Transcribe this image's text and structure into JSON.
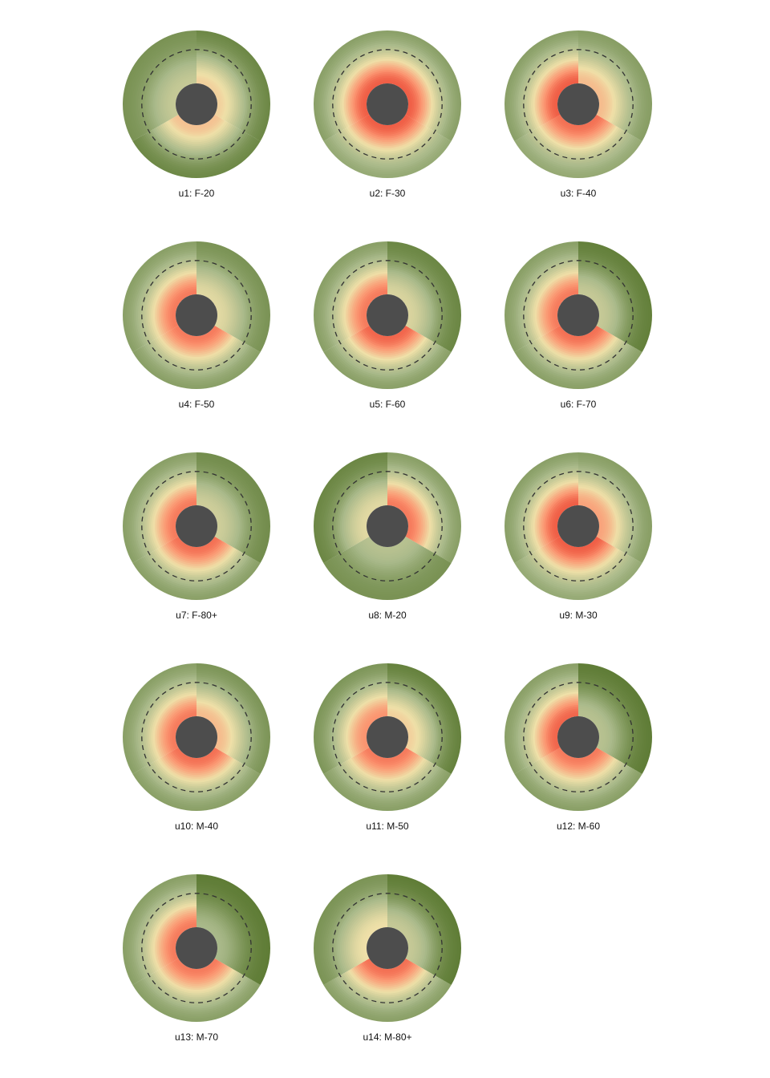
{
  "chart_data": {
    "type": "polar",
    "angular_sectors": 3,
    "sector_order": "clockwise from 12 o'clock",
    "radial_scale": "Gaussian colour gradient from inner hub to outer rim; dashed circle marks reference radius",
    "dashed_reference_fraction": 0.64,
    "color_scale": {
      "low": "#4a6b1e",
      "mid_low": "#a9b98a",
      "mid": "#efe0a8",
      "mid_high": "#fb9470",
      "high": "#e83a2a"
    },
    "hub_color": "#4d4d4d",
    "panels": [
      {
        "label": "u1: F-20",
        "sectors": [
          [
            0.08,
            0.55
          ],
          [
            0.08,
            0.6
          ],
          [
            0.12,
            0.35
          ]
        ]
      },
      {
        "label": "u2: F-30",
        "sectors": [
          [
            0.15,
            0.9
          ],
          [
            0.18,
            0.9
          ],
          [
            0.15,
            0.9
          ]
        ]
      },
      {
        "label": "u3: F-40",
        "sectors": [
          [
            0.15,
            0.62
          ],
          [
            0.18,
            0.85
          ],
          [
            0.15,
            0.9
          ]
        ]
      },
      {
        "label": "u4: F-50",
        "sectors": [
          [
            0.12,
            0.45
          ],
          [
            0.15,
            0.82
          ],
          [
            0.15,
            0.82
          ]
        ]
      },
      {
        "label": "u5: F-60",
        "sectors": [
          [
            0.08,
            0.42
          ],
          [
            0.15,
            0.88
          ],
          [
            0.15,
            0.82
          ]
        ]
      },
      {
        "label": "u6: F-70",
        "sectors": [
          [
            0.06,
            0.35
          ],
          [
            0.15,
            0.85
          ],
          [
            0.15,
            0.82
          ]
        ]
      },
      {
        "label": "u7: F-80+",
        "sectors": [
          [
            0.1,
            0.38
          ],
          [
            0.15,
            0.85
          ],
          [
            0.15,
            0.82
          ]
        ]
      },
      {
        "label": "u8: M-20",
        "sectors": [
          [
            0.15,
            0.82
          ],
          [
            0.12,
            0.3
          ],
          [
            0.08,
            0.45
          ]
        ]
      },
      {
        "label": "u9: M-30",
        "sectors": [
          [
            0.15,
            0.7
          ],
          [
            0.18,
            0.9
          ],
          [
            0.15,
            0.9
          ]
        ]
      },
      {
        "label": "u10: M-40",
        "sectors": [
          [
            0.12,
            0.62
          ],
          [
            0.15,
            0.85
          ],
          [
            0.15,
            0.82
          ]
        ]
      },
      {
        "label": "u11: M-50",
        "sectors": [
          [
            0.06,
            0.55
          ],
          [
            0.15,
            0.82
          ],
          [
            0.12,
            0.75
          ]
        ]
      },
      {
        "label": "u12: M-60",
        "sectors": [
          [
            0.05,
            0.3
          ],
          [
            0.15,
            0.82
          ],
          [
            0.15,
            0.88
          ]
        ]
      },
      {
        "label": "u13: M-70",
        "sectors": [
          [
            0.05,
            0.25
          ],
          [
            0.15,
            0.82
          ],
          [
            0.15,
            0.82
          ]
        ]
      },
      {
        "label": "u14: M-80+",
        "sectors": [
          [
            0.05,
            0.35
          ],
          [
            0.15,
            0.85
          ],
          [
            0.12,
            0.5
          ]
        ]
      }
    ]
  }
}
